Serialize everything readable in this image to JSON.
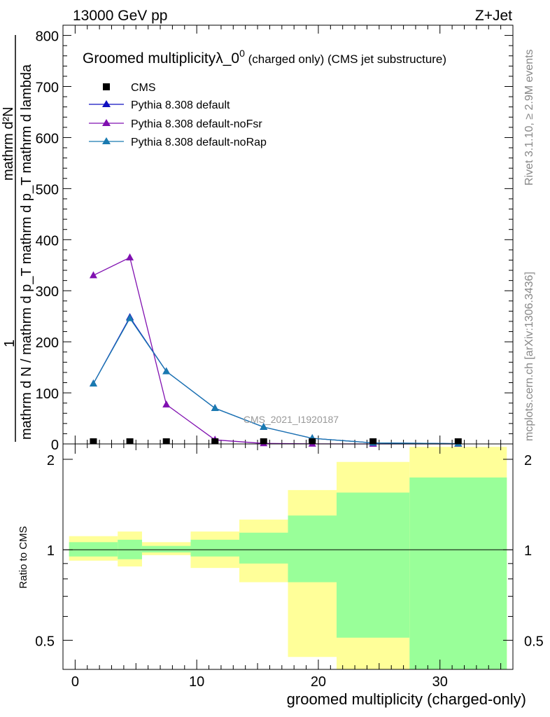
{
  "header": {
    "left": "13000 GeV pp",
    "right": "Z+Jet"
  },
  "side_labels": {
    "rivet": "Rivet 3.1.10, ≥ 2.9M events",
    "mcplots": "mcplots.cern.ch [arXiv:1306.3436]"
  },
  "watermark": "CMS_2021_I1920187",
  "colors": {
    "cms": "#000000",
    "default": "#1010c0",
    "noFsr": "#8010b0",
    "noRap": "#1a7ab0",
    "band_outer": "#ffff99",
    "band_inner": "#99ff99"
  },
  "chart_data": [
    {
      "type": "line",
      "title": "Groomed multiplicityλ_0",
      "title_sup": "0",
      "title_suffix": " (charged only) (CMS jet substructure)",
      "ylabel_upper": "mathrm d²N",
      "ylabel_lower": "mathrm d N / mathrm d p_T mathrm d p_T mathrm d lambda",
      "ylabel_prefix": "1",
      "xlim": [
        -1,
        36
      ],
      "ylim": [
        0,
        820
      ],
      "yticks": [
        0,
        100,
        200,
        300,
        400,
        500,
        600,
        700,
        800
      ],
      "legend_position": "top-left",
      "series": [
        {
          "name": "CMS",
          "key": "cms",
          "marker": "square",
          "x": [
            1.5,
            4.5,
            7.5,
            11.5,
            15.5,
            19.5,
            24.5,
            31.5
          ],
          "y": [
            0.5,
            0.5,
            0.5,
            0.3,
            0.2,
            0.1,
            0.05,
            0.02
          ]
        },
        {
          "name": "Pythia 8.308 default",
          "key": "default",
          "marker": "triangle",
          "x": [
            1.5,
            4.5,
            7.5,
            11.5,
            15.5,
            19.5,
            24.5,
            31.5
          ],
          "y": [
            118,
            248,
            142,
            70,
            33,
            11,
            2,
            0.5
          ]
        },
        {
          "name": "Pythia 8.308 default-noFsr",
          "key": "noFsr",
          "marker": "triangle",
          "x": [
            1.5,
            4.5,
            7.5,
            11.5,
            15.5,
            19.5,
            24.5,
            31.5
          ],
          "y": [
            330,
            365,
            77,
            8,
            1,
            0.2,
            0.05,
            0.01
          ]
        },
        {
          "name": "Pythia 8.308 default-noRap",
          "key": "noRap",
          "marker": "triangle",
          "x": [
            1.5,
            4.5,
            7.5,
            11.5,
            15.5,
            19.5,
            24.5,
            31.5
          ],
          "y": [
            118,
            246,
            142,
            70,
            33,
            11,
            2,
            0.5
          ]
        }
      ]
    },
    {
      "type": "area",
      "ylabel": "Ratio to CMS",
      "xlabel": "groomed multiplicity (charged-only)",
      "xlim": [
        -1,
        36
      ],
      "ylim": [
        0.4,
        2.25
      ],
      "xticks": [
        0,
        10,
        20,
        30
      ],
      "yticks": [
        0.5,
        1,
        2
      ],
      "reference": 1,
      "bins": [
        {
          "lo": -0.5,
          "hi": 3.5,
          "inner": [
            0.95,
            1.06
          ],
          "outer": [
            0.92,
            1.11
          ]
        },
        {
          "lo": 3.5,
          "hi": 5.5,
          "inner": [
            0.93,
            1.08
          ],
          "outer": [
            0.88,
            1.15
          ]
        },
        {
          "lo": 5.5,
          "hi": 9.5,
          "inner": [
            0.98,
            1.03
          ],
          "outer": [
            0.96,
            1.06
          ]
        },
        {
          "lo": 9.5,
          "hi": 13.5,
          "inner": [
            0.95,
            1.08
          ],
          "outer": [
            0.87,
            1.15
          ]
        },
        {
          "lo": 13.5,
          "hi": 17.5,
          "inner": [
            0.9,
            1.14
          ],
          "outer": [
            0.78,
            1.26
          ]
        },
        {
          "lo": 17.5,
          "hi": 21.5,
          "inner": [
            0.78,
            1.3
          ],
          "outer": [
            0.44,
            1.58
          ]
        },
        {
          "lo": 21.5,
          "hi": 27.5,
          "inner": [
            0.51,
            1.55
          ],
          "outer": [
            0.4,
            1.96
          ]
        },
        {
          "lo": 27.5,
          "hi": 35.5,
          "inner": [
            0.4,
            1.74
          ],
          "outer": [
            0.4,
            2.2
          ]
        }
      ]
    }
  ]
}
